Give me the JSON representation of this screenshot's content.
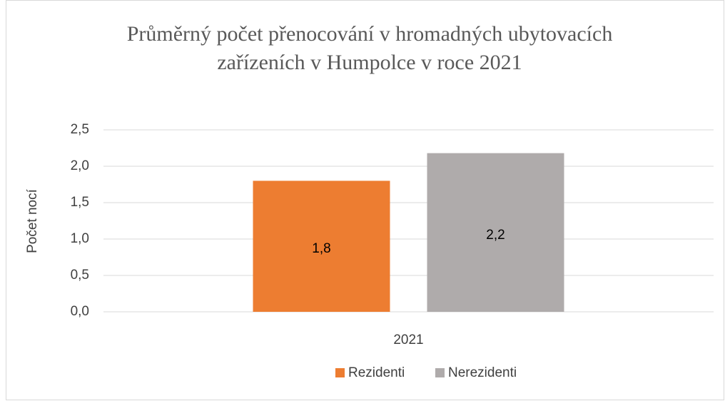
{
  "chart_data": {
    "type": "bar",
    "title": "Průměrný počet přenocování v hromadných ubytovacích zařízeních v Humpolce v roce 2021",
    "ylabel": "Počet nocí",
    "categories": [
      "2021"
    ],
    "series": [
      {
        "name": "Rezidenti",
        "color": "#ed7d31",
        "values": [
          1.8
        ],
        "value_labels": [
          "1,8"
        ]
      },
      {
        "name": "Nerezidenti",
        "color": "#afabab",
        "values": [
          2.18
        ],
        "value_labels": [
          "2,2"
        ]
      }
    ],
    "ylim": [
      0,
      2.5
    ],
    "yticks": [
      {
        "value": 0,
        "label": "0,0"
      },
      {
        "value": 0.5,
        "label": "0,5"
      },
      {
        "value": 1,
        "label": "1,0"
      },
      {
        "value": 1.5,
        "label": "1,5"
      },
      {
        "value": 2,
        "label": "2,0"
      },
      {
        "value": 2.5,
        "label": "2,5"
      }
    ],
    "grid": true,
    "legend": "bottom"
  }
}
